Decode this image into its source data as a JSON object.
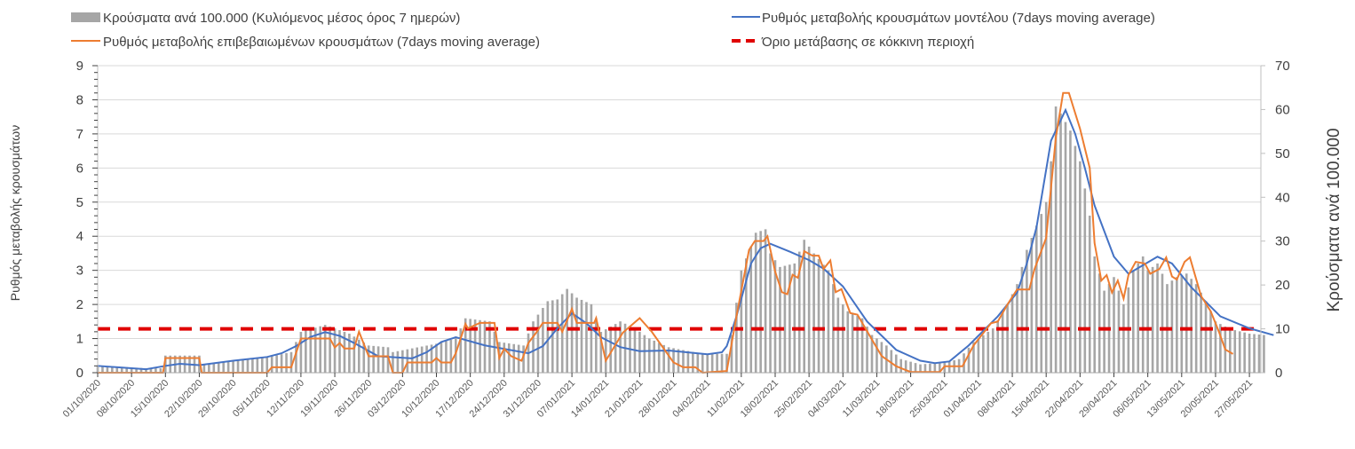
{
  "legend": {
    "bars": "Κρούσματα ανά 100.000 (Κυλιόμενος μέσος όρος 7 ημερών)",
    "blue": "Ρυθμός μεταβολής κρουσμάτων μοντέλου (7days moving average)",
    "orange": "Ρυθμός μεταβολής επιβεβαιωμένων κρουσμάτων (7days moving average)",
    "red": "Όριο μετάβασης σε κόκκινη περιοχή"
  },
  "chart_data": {
    "type": "bar+line",
    "x_start_date": "01/10/2020",
    "x_unit": "days since 01/10/2020",
    "ylabel_left": "Ρυθμός μεταβολής κρουσμάτων",
    "ylabel_right": "Κρούσματα ανά 100.000",
    "ylim_left": [
      0,
      9
    ],
    "ylim_right": [
      0,
      70
    ],
    "yticks_left": [
      "0",
      "1",
      "2",
      "3",
      "4",
      "5",
      "6",
      "7",
      "8",
      "9"
    ],
    "yticks_right": [
      "0",
      "10",
      "20",
      "30",
      "40",
      "50",
      "60",
      "70"
    ],
    "grid": "horizontal",
    "legend_position": "top",
    "xticks": [
      "01/10/2020",
      "08/10/2020",
      "15/10/2020",
      "22/10/2020",
      "29/10/2020",
      "05/11/2020",
      "12/11/2020",
      "19/11/2020",
      "26/11/2020",
      "03/12/2020",
      "10/12/2020",
      "17/12/2020",
      "24/12/2020",
      "31/12/2020",
      "07/01/2021",
      "14/01/2021",
      "21/01/2021",
      "28/01/2021",
      "04/02/2021",
      "11/02/2021",
      "18/02/2021",
      "25/02/2021",
      "04/03/2021",
      "11/03/2021",
      "18/03/2021",
      "25/03/2021",
      "01/04/2021",
      "08/04/2021",
      "15/04/2021",
      "22/04/2021",
      "29/04/2021",
      "06/05/2021",
      "13/05/2021",
      "20/05/2021",
      "27/05/2021"
    ],
    "threshold_right_axis": 10,
    "series": [
      {
        "name": "cases_per_100k",
        "axis": "right",
        "kind": "bar",
        "color": "#a6a6a6",
        "points": [
          [
            0,
            1.6
          ],
          [
            10,
            1.0
          ],
          [
            13,
            1.0
          ],
          [
            14,
            3.9
          ],
          [
            21,
            3.9
          ],
          [
            22,
            1.9
          ],
          [
            28,
            2.6
          ],
          [
            35,
            3.5
          ],
          [
            40,
            4.7
          ],
          [
            42,
            9.3
          ],
          [
            47,
            10.9
          ],
          [
            52,
            8.9
          ],
          [
            56,
            6.2
          ],
          [
            60,
            5.8
          ],
          [
            61,
            4.7
          ],
          [
            70,
            6.6
          ],
          [
            74,
            7.8
          ],
          [
            76,
            12.4
          ],
          [
            81,
            11.7
          ],
          [
            83,
            7.0
          ],
          [
            88,
            6.2
          ],
          [
            90,
            11.7
          ],
          [
            93,
            16.3
          ],
          [
            95,
            16.7
          ],
          [
            97,
            19.1
          ],
          [
            99,
            17.1
          ],
          [
            102,
            15.6
          ],
          [
            104,
            9.3
          ],
          [
            108,
            11.7
          ],
          [
            111,
            10.1
          ],
          [
            114,
            7.8
          ],
          [
            118,
            5.8
          ],
          [
            125,
            4.3
          ],
          [
            130,
            4.3
          ],
          [
            131,
            8.6
          ],
          [
            133,
            23.3
          ],
          [
            135,
            28.8
          ],
          [
            136,
            31.9
          ],
          [
            138,
            32.7
          ],
          [
            139,
            27.2
          ],
          [
            141,
            24.1
          ],
          [
            144,
            24.9
          ],
          [
            146,
            30.3
          ],
          [
            148,
            27.2
          ],
          [
            151,
            23.3
          ],
          [
            153,
            17.1
          ],
          [
            155,
            14.0
          ],
          [
            158,
            12.4
          ],
          [
            160,
            8.6
          ],
          [
            163,
            6.2
          ],
          [
            166,
            3.1
          ],
          [
            170,
            1.9
          ],
          [
            175,
            2.3
          ],
          [
            178,
            3.1
          ],
          [
            181,
            7.0
          ],
          [
            185,
            10.1
          ],
          [
            188,
            15.6
          ],
          [
            190,
            20.2
          ],
          [
            192,
            28.0
          ],
          [
            194,
            33.5
          ],
          [
            196,
            38.9
          ],
          [
            197,
            48.2
          ],
          [
            198,
            60.7
          ],
          [
            199,
            59.1
          ],
          [
            201,
            55.2
          ],
          [
            203,
            48.2
          ],
          [
            205,
            35.8
          ],
          [
            206,
            26.5
          ],
          [
            208,
            18.7
          ],
          [
            210,
            21.8
          ],
          [
            212,
            15.6
          ],
          [
            214,
            23.3
          ],
          [
            216,
            26.5
          ],
          [
            217,
            23.3
          ],
          [
            219,
            24.9
          ],
          [
            221,
            20.2
          ],
          [
            223,
            21.8
          ],
          [
            225,
            22.6
          ],
          [
            227,
            20.2
          ],
          [
            229,
            16.3
          ],
          [
            231,
            11.7
          ],
          [
            233,
            10.5
          ],
          [
            235,
            9.7
          ],
          [
            238,
            8.9
          ],
          [
            241,
            8.6
          ]
        ]
      },
      {
        "name": "model_rate",
        "axis": "left",
        "kind": "line",
        "color": "#4472c4",
        "points": [
          [
            0,
            0.2
          ],
          [
            10,
            0.1
          ],
          [
            14,
            0.2
          ],
          [
            17,
            0.26
          ],
          [
            21,
            0.22
          ],
          [
            28,
            0.35
          ],
          [
            35,
            0.46
          ],
          [
            38,
            0.57
          ],
          [
            41,
            0.78
          ],
          [
            44,
            1.05
          ],
          [
            47,
            1.19
          ],
          [
            50,
            1.08
          ],
          [
            53,
            0.87
          ],
          [
            58,
            0.48
          ],
          [
            65,
            0.42
          ],
          [
            68,
            0.6
          ],
          [
            71,
            0.9
          ],
          [
            74,
            1.04
          ],
          [
            80,
            0.8
          ],
          [
            89,
            0.57
          ],
          [
            92,
            0.78
          ],
          [
            95,
            1.3
          ],
          [
            98,
            1.74
          ],
          [
            101,
            1.45
          ],
          [
            104,
            1.04
          ],
          [
            108,
            0.75
          ],
          [
            112,
            0.63
          ],
          [
            118,
            0.65
          ],
          [
            126,
            0.54
          ],
          [
            129,
            0.6
          ],
          [
            130,
            0.78
          ],
          [
            132,
            1.65
          ],
          [
            135,
            3.2
          ],
          [
            137,
            3.65
          ],
          [
            139,
            3.78
          ],
          [
            143,
            3.55
          ],
          [
            147,
            3.3
          ],
          [
            150,
            3.05
          ],
          [
            154,
            2.53
          ],
          [
            159,
            1.5
          ],
          [
            165,
            0.67
          ],
          [
            170,
            0.35
          ],
          [
            173,
            0.28
          ],
          [
            176,
            0.33
          ],
          [
            180,
            0.8
          ],
          [
            186,
            1.65
          ],
          [
            190,
            2.35
          ],
          [
            192,
            3.2
          ],
          [
            194,
            4.26
          ],
          [
            197,
            6.8
          ],
          [
            200,
            7.7
          ],
          [
            202,
            7.0
          ],
          [
            204,
            6.0
          ],
          [
            206,
            4.9
          ],
          [
            210,
            3.4
          ],
          [
            213,
            2.9
          ],
          [
            216,
            3.15
          ],
          [
            219,
            3.4
          ],
          [
            222,
            3.2
          ],
          [
            226,
            2.5
          ],
          [
            232,
            1.65
          ],
          [
            238,
            1.3
          ],
          [
            243,
            1.1
          ]
        ]
      },
      {
        "name": "confirmed_rate",
        "axis": "left",
        "kind": "line",
        "color": "#ed7d31",
        "points": [
          [
            0,
            0
          ],
          [
            13.5,
            0
          ],
          [
            14,
            0.43
          ],
          [
            21,
            0.43
          ],
          [
            21.5,
            0
          ],
          [
            35,
            0
          ],
          [
            36,
            0.16
          ],
          [
            40,
            0.16
          ],
          [
            42,
            1.0
          ],
          [
            48,
            1.0
          ],
          [
            49,
            0.74
          ],
          [
            50,
            0.87
          ],
          [
            51,
            0.71
          ],
          [
            53,
            0.71
          ],
          [
            54,
            1.2
          ],
          [
            56,
            0.48
          ],
          [
            60,
            0.48
          ],
          [
            61,
            0
          ],
          [
            63,
            0
          ],
          [
            64,
            0.3
          ],
          [
            69,
            0.3
          ],
          [
            70,
            0.43
          ],
          [
            71,
            0.3
          ],
          [
            73,
            0.3
          ],
          [
            74,
            0.57
          ],
          [
            76,
            1.43
          ],
          [
            76.5,
            1.3
          ],
          [
            79,
            1.46
          ],
          [
            82,
            1.46
          ],
          [
            83,
            0.43
          ],
          [
            84,
            0.7
          ],
          [
            85.5,
            0.48
          ],
          [
            87.6,
            0.35
          ],
          [
            89,
            0.87
          ],
          [
            90.6,
            1.17
          ],
          [
            92,
            1.46
          ],
          [
            95,
            1.46
          ],
          [
            96,
            1.2
          ],
          [
            98,
            1.87
          ],
          [
            99,
            1.46
          ],
          [
            102.6,
            1.46
          ],
          [
            103,
            1.6
          ],
          [
            105,
            0.35
          ],
          [
            108.5,
            1.17
          ],
          [
            112,
            1.6
          ],
          [
            114.5,
            1.2
          ],
          [
            119,
            0.3
          ],
          [
            121,
            0.16
          ],
          [
            123.5,
            0.16
          ],
          [
            125,
            0
          ],
          [
            130,
            0.05
          ],
          [
            132,
            1.65
          ],
          [
            134.6,
            3.6
          ],
          [
            135.8,
            3.86
          ],
          [
            137.6,
            3.86
          ],
          [
            138.4,
            4.0
          ],
          [
            140,
            2.96
          ],
          [
            141.4,
            2.36
          ],
          [
            142.5,
            2.3
          ],
          [
            143.6,
            2.87
          ],
          [
            144.7,
            2.78
          ],
          [
            146,
            3.56
          ],
          [
            147.7,
            3.43
          ],
          [
            149,
            3.43
          ],
          [
            150,
            3.04
          ],
          [
            151.4,
            3.29
          ],
          [
            152.5,
            2.36
          ],
          [
            153.7,
            2.45
          ],
          [
            155.5,
            1.75
          ],
          [
            157,
            1.7
          ],
          [
            160,
            0.97
          ],
          [
            162,
            0.49
          ],
          [
            165,
            0.19
          ],
          [
            168,
            0.02
          ],
          [
            174,
            0.02
          ],
          [
            175,
            0.19
          ],
          [
            178.7,
            0.19
          ],
          [
            181,
            0.8
          ],
          [
            184.6,
            1.45
          ],
          [
            186,
            1.5
          ],
          [
            188,
            2.0
          ],
          [
            190,
            2.44
          ],
          [
            192.5,
            2.44
          ],
          [
            193.6,
            3.04
          ],
          [
            196,
            3.95
          ],
          [
            198,
            6.9
          ],
          [
            199.5,
            8.2
          ],
          [
            200.7,
            8.2
          ],
          [
            203,
            7.15
          ],
          [
            205,
            6.0
          ],
          [
            206,
            3.8
          ],
          [
            207.4,
            2.7
          ],
          [
            208.5,
            2.86
          ],
          [
            209.6,
            2.35
          ],
          [
            210.8,
            2.7
          ],
          [
            212,
            2.17
          ],
          [
            213,
            2.86
          ],
          [
            214.5,
            3.25
          ],
          [
            216.4,
            3.2
          ],
          [
            217.5,
            2.9
          ],
          [
            219.4,
            3.04
          ],
          [
            220.8,
            3.38
          ],
          [
            222,
            2.82
          ],
          [
            223,
            2.73
          ],
          [
            224.6,
            3.25
          ],
          [
            225.7,
            3.38
          ],
          [
            228,
            2.25
          ],
          [
            230,
            1.8
          ],
          [
            231.7,
            1.2
          ],
          [
            233,
            0.68
          ],
          [
            234.6,
            0.55
          ]
        ]
      }
    ]
  }
}
